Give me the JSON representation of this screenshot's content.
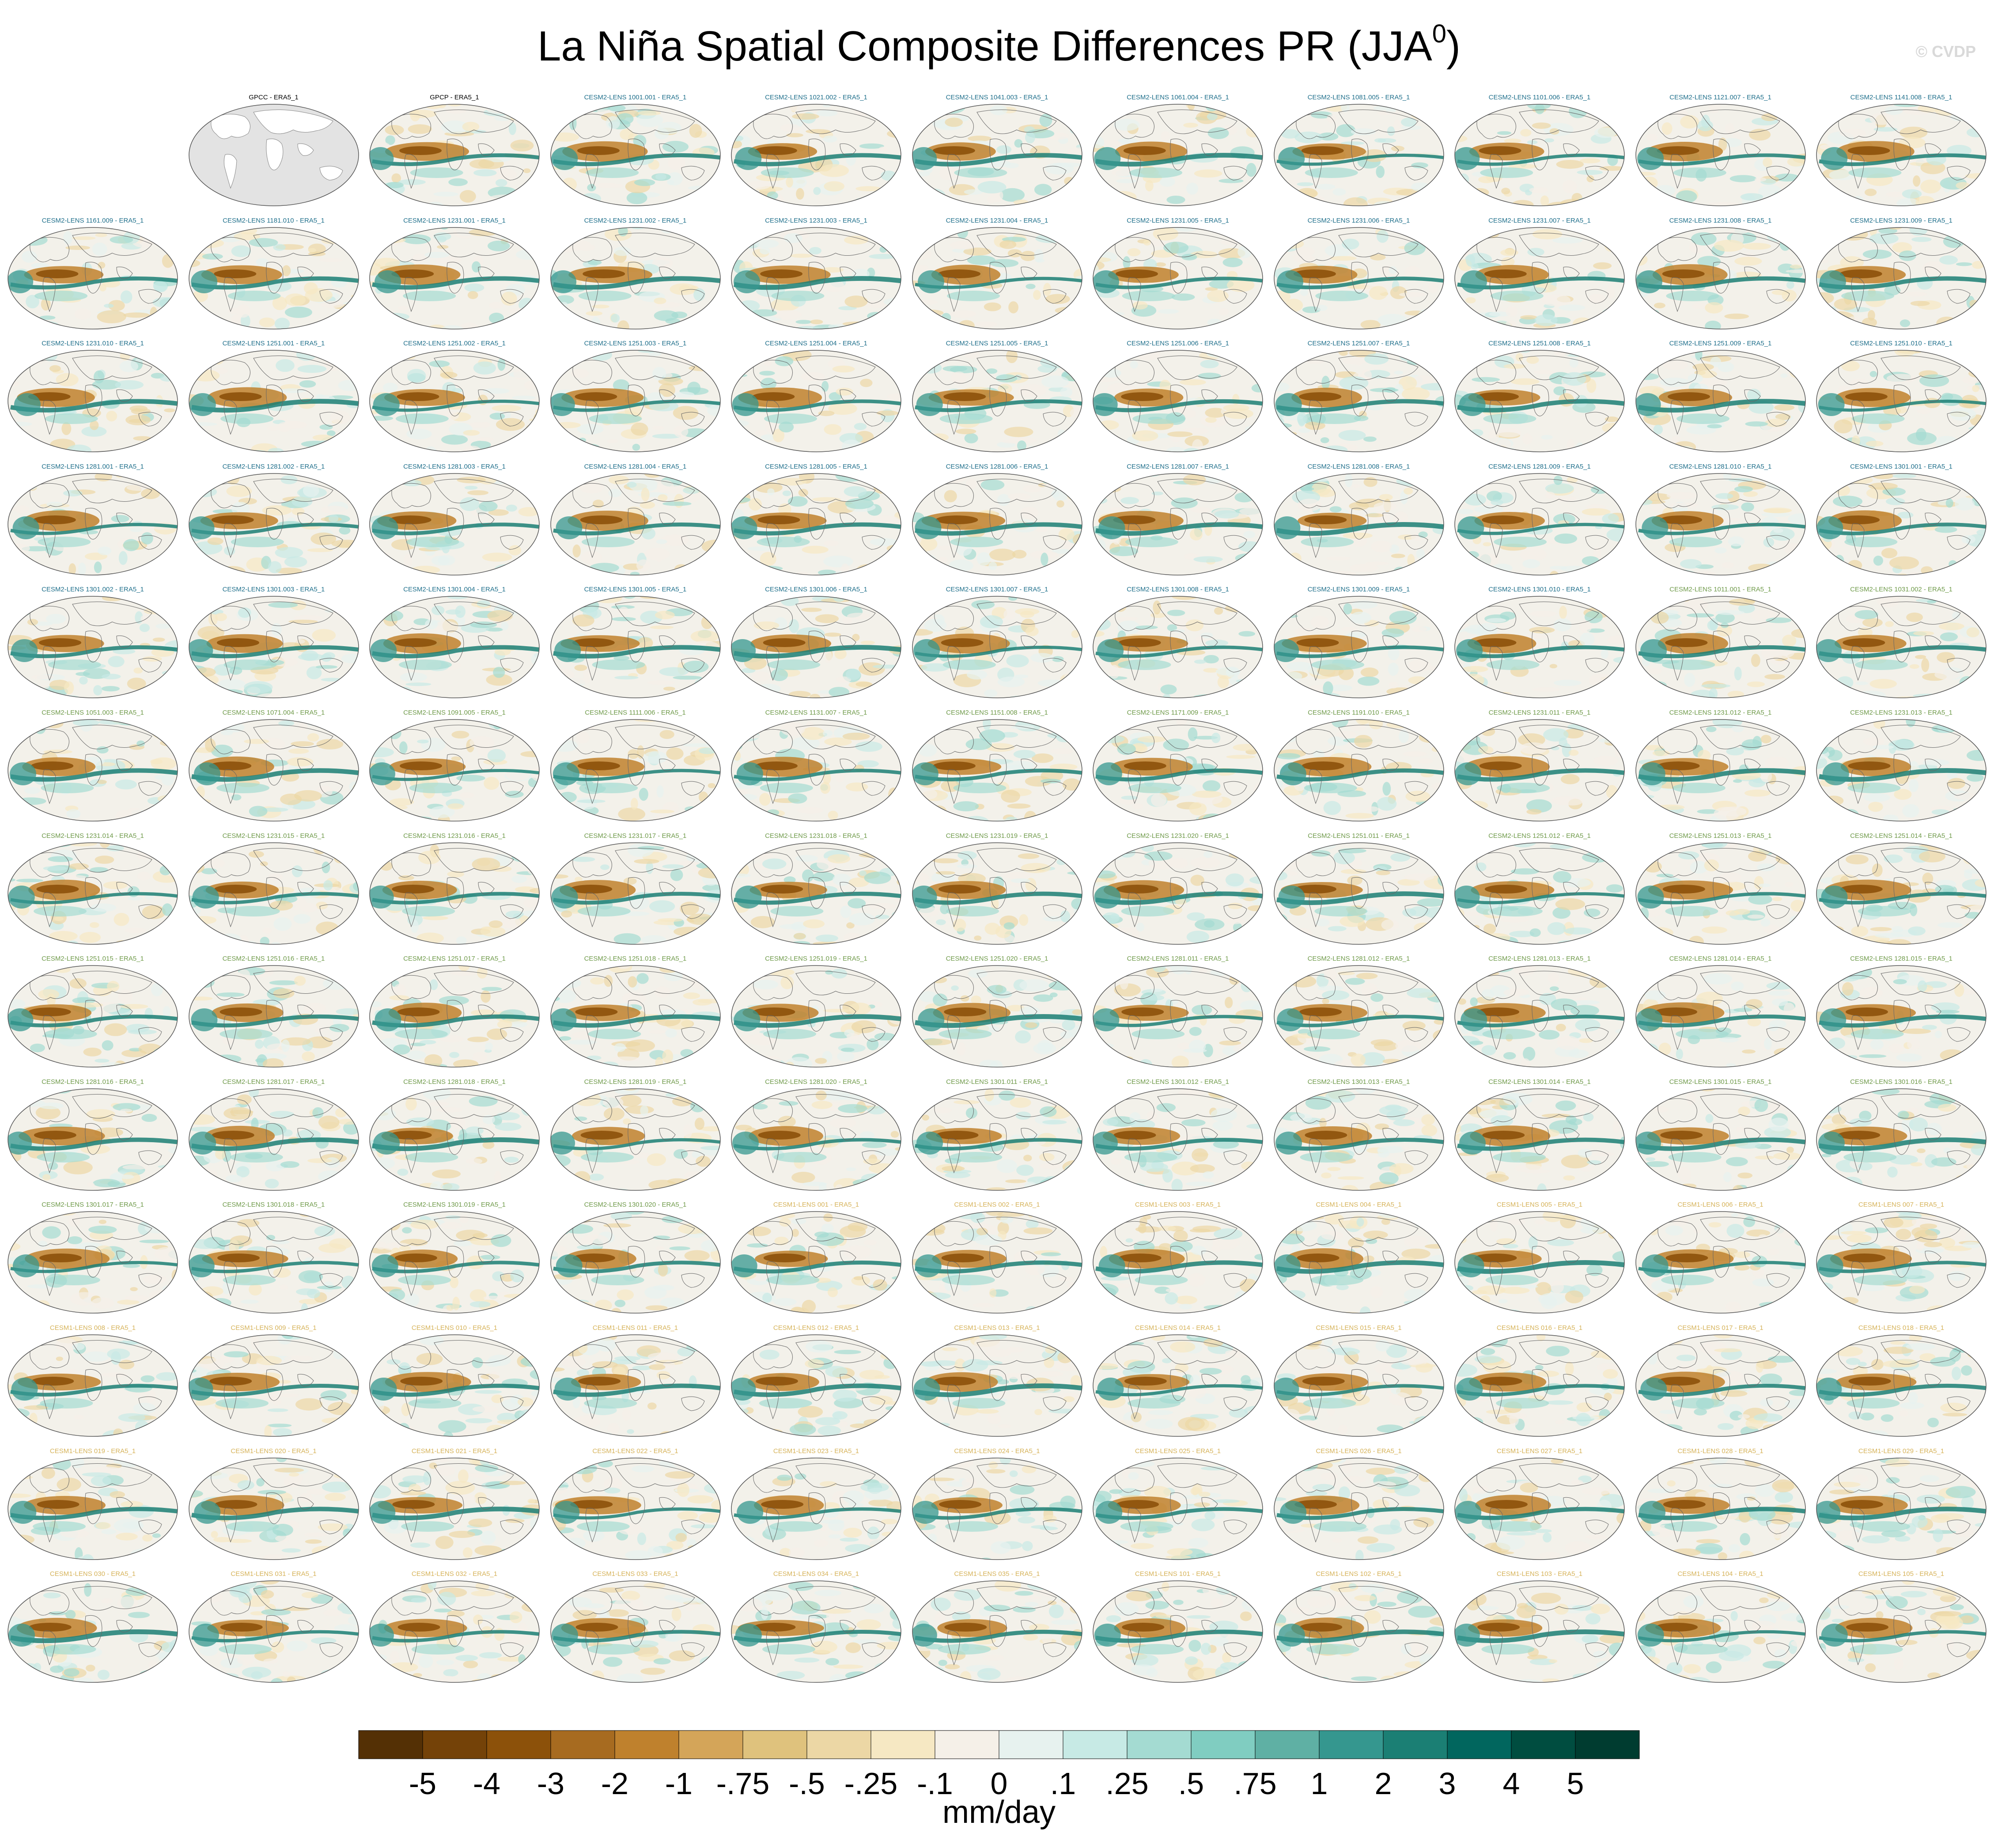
{
  "title": "La Niña Spatial Composite Differences PR (JJA",
  "title_sup": "0",
  "title_end": ")",
  "credit": "© CVDP",
  "chart_data": {
    "type": "heatmap",
    "title": "La Niña Spatial Composite Differences PR (JJA0)",
    "colorbar": {
      "units": "mm/day",
      "levels": [
        "-5",
        "-4",
        "-3",
        "-2",
        "-1",
        "-.75",
        "-.5",
        "-.25",
        "-.1",
        "0",
        ".1",
        ".25",
        ".5",
        ".75",
        "1",
        "2",
        "3",
        "4",
        "5"
      ],
      "colors": [
        "#543005",
        "#744208",
        "#8c510a",
        "#a76b20",
        "#bf812d",
        "#d4a559",
        "#dfc27d",
        "#ecd7a5",
        "#f6e8c3",
        "#f5f0e8",
        "#e7f2ef",
        "#c7eae5",
        "#a4dbd2",
        "#80cdc1",
        "#5fb0a4",
        "#35978f",
        "#1b7f74",
        "#01665e",
        "#004d40",
        "#003c30"
      ]
    },
    "label_colors": {
      "obs": "#000000",
      "CESM2-LENS_a": "#1f6f8b",
      "CESM2-LENS_b": "#6f9a4a",
      "CESM1-LENS": "#d6b35a"
    },
    "panels": [
      {
        "label": "",
        "group": "blank"
      },
      {
        "label": "GPCC - ERA5_1",
        "group": "obs",
        "style": "masked"
      },
      {
        "label": "GPCP - ERA5_1",
        "group": "obs"
      },
      {
        "label": "CESM2-LENS 1001.001 - ERA5_1",
        "group": "CESM2-LENS_a"
      },
      {
        "label": "CESM2-LENS 1021.002 - ERA5_1",
        "group": "CESM2-LENS_a"
      },
      {
        "label": "CESM2-LENS 1041.003 - ERA5_1",
        "group": "CESM2-LENS_a"
      },
      {
        "label": "CESM2-LENS 1061.004 - ERA5_1",
        "group": "CESM2-LENS_a"
      },
      {
        "label": "CESM2-LENS 1081.005 - ERA5_1",
        "group": "CESM2-LENS_a"
      },
      {
        "label": "CESM2-LENS 1101.006 - ERA5_1",
        "group": "CESM2-LENS_a"
      },
      {
        "label": "CESM2-LENS 1121.007 - ERA5_1",
        "group": "CESM2-LENS_a"
      },
      {
        "label": "CESM2-LENS 1141.008 - ERA5_1",
        "group": "CESM2-LENS_a"
      },
      {
        "label": "CESM2-LENS 1161.009 - ERA5_1",
        "group": "CESM2-LENS_a"
      },
      {
        "label": "CESM2-LENS 1181.010 - ERA5_1",
        "group": "CESM2-LENS_a"
      },
      {
        "label": "CESM2-LENS 1231.001 - ERA5_1",
        "group": "CESM2-LENS_a"
      },
      {
        "label": "CESM2-LENS 1231.002 - ERA5_1",
        "group": "CESM2-LENS_a"
      },
      {
        "label": "CESM2-LENS 1231.003 - ERA5_1",
        "group": "CESM2-LENS_a"
      },
      {
        "label": "CESM2-LENS 1231.004 - ERA5_1",
        "group": "CESM2-LENS_a"
      },
      {
        "label": "CESM2-LENS 1231.005 - ERA5_1",
        "group": "CESM2-LENS_a"
      },
      {
        "label": "CESM2-LENS 1231.006 - ERA5_1",
        "group": "CESM2-LENS_a"
      },
      {
        "label": "CESM2-LENS 1231.007 - ERA5_1",
        "group": "CESM2-LENS_a"
      },
      {
        "label": "CESM2-LENS 1231.008 - ERA5_1",
        "group": "CESM2-LENS_a"
      },
      {
        "label": "CESM2-LENS 1231.009 - ERA5_1",
        "group": "CESM2-LENS_a"
      },
      {
        "label": "CESM2-LENS 1231.010 - ERA5_1",
        "group": "CESM2-LENS_a"
      },
      {
        "label": "CESM2-LENS 1251.001 - ERA5_1",
        "group": "CESM2-LENS_a"
      },
      {
        "label": "CESM2-LENS 1251.002 - ERA5_1",
        "group": "CESM2-LENS_a"
      },
      {
        "label": "CESM2-LENS 1251.003 - ERA5_1",
        "group": "CESM2-LENS_a"
      },
      {
        "label": "CESM2-LENS 1251.004 - ERA5_1",
        "group": "CESM2-LENS_a"
      },
      {
        "label": "CESM2-LENS 1251.005 - ERA5_1",
        "group": "CESM2-LENS_a"
      },
      {
        "label": "CESM2-LENS 1251.006 - ERA5_1",
        "group": "CESM2-LENS_a"
      },
      {
        "label": "CESM2-LENS 1251.007 - ERA5_1",
        "group": "CESM2-LENS_a"
      },
      {
        "label": "CESM2-LENS 1251.008 - ERA5_1",
        "group": "CESM2-LENS_a"
      },
      {
        "label": "CESM2-LENS 1251.009 - ERA5_1",
        "group": "CESM2-LENS_a"
      },
      {
        "label": "CESM2-LENS 1251.010 - ERA5_1",
        "group": "CESM2-LENS_a"
      },
      {
        "label": "CESM2-LENS 1281.001 - ERA5_1",
        "group": "CESM2-LENS_a"
      },
      {
        "label": "CESM2-LENS 1281.002 - ERA5_1",
        "group": "CESM2-LENS_a"
      },
      {
        "label": "CESM2-LENS 1281.003 - ERA5_1",
        "group": "CESM2-LENS_a"
      },
      {
        "label": "CESM2-LENS 1281.004 - ERA5_1",
        "group": "CESM2-LENS_a"
      },
      {
        "label": "CESM2-LENS 1281.005 - ERA5_1",
        "group": "CESM2-LENS_a"
      },
      {
        "label": "CESM2-LENS 1281.006 - ERA5_1",
        "group": "CESM2-LENS_a"
      },
      {
        "label": "CESM2-LENS 1281.007 - ERA5_1",
        "group": "CESM2-LENS_a"
      },
      {
        "label": "CESM2-LENS 1281.008 - ERA5_1",
        "group": "CESM2-LENS_a"
      },
      {
        "label": "CESM2-LENS 1281.009 - ERA5_1",
        "group": "CESM2-LENS_a"
      },
      {
        "label": "CESM2-LENS 1281.010 - ERA5_1",
        "group": "CESM2-LENS_a"
      },
      {
        "label": "CESM2-LENS 1301.001 - ERA5_1",
        "group": "CESM2-LENS_a"
      },
      {
        "label": "CESM2-LENS 1301.002 - ERA5_1",
        "group": "CESM2-LENS_a"
      },
      {
        "label": "CESM2-LENS 1301.003 - ERA5_1",
        "group": "CESM2-LENS_a"
      },
      {
        "label": "CESM2-LENS 1301.004 - ERA5_1",
        "group": "CESM2-LENS_a"
      },
      {
        "label": "CESM2-LENS 1301.005 - ERA5_1",
        "group": "CESM2-LENS_a"
      },
      {
        "label": "CESM2-LENS 1301.006 - ERA5_1",
        "group": "CESM2-LENS_a"
      },
      {
        "label": "CESM2-LENS 1301.007 - ERA5_1",
        "group": "CESM2-LENS_a"
      },
      {
        "label": "CESM2-LENS 1301.008 - ERA5_1",
        "group": "CESM2-LENS_a"
      },
      {
        "label": "CESM2-LENS 1301.009 - ERA5_1",
        "group": "CESM2-LENS_a"
      },
      {
        "label": "CESM2-LENS 1301.010 - ERA5_1",
        "group": "CESM2-LENS_a"
      },
      {
        "label": "CESM2-LENS 1011.001 - ERA5_1",
        "group": "CESM2-LENS_b"
      },
      {
        "label": "CESM2-LENS 1031.002 - ERA5_1",
        "group": "CESM2-LENS_b"
      },
      {
        "label": "CESM2-LENS 1051.003 - ERA5_1",
        "group": "CESM2-LENS_b"
      },
      {
        "label": "CESM2-LENS 1071.004 - ERA5_1",
        "group": "CESM2-LENS_b"
      },
      {
        "label": "CESM2-LENS 1091.005 - ERA5_1",
        "group": "CESM2-LENS_b"
      },
      {
        "label": "CESM2-LENS 1111.006 - ERA5_1",
        "group": "CESM2-LENS_b"
      },
      {
        "label": "CESM2-LENS 1131.007 - ERA5_1",
        "group": "CESM2-LENS_b"
      },
      {
        "label": "CESM2-LENS 1151.008 - ERA5_1",
        "group": "CESM2-LENS_b"
      },
      {
        "label": "CESM2-LENS 1171.009 - ERA5_1",
        "group": "CESM2-LENS_b"
      },
      {
        "label": "CESM2-LENS 1191.010 - ERA5_1",
        "group": "CESM2-LENS_b"
      },
      {
        "label": "CESM2-LENS 1231.011 - ERA5_1",
        "group": "CESM2-LENS_b"
      },
      {
        "label": "CESM2-LENS 1231.012 - ERA5_1",
        "group": "CESM2-LENS_b"
      },
      {
        "label": "CESM2-LENS 1231.013 - ERA5_1",
        "group": "CESM2-LENS_b"
      },
      {
        "label": "CESM2-LENS 1231.014 - ERA5_1",
        "group": "CESM2-LENS_b"
      },
      {
        "label": "CESM2-LENS 1231.015 - ERA5_1",
        "group": "CESM2-LENS_b"
      },
      {
        "label": "CESM2-LENS 1231.016 - ERA5_1",
        "group": "CESM2-LENS_b"
      },
      {
        "label": "CESM2-LENS 1231.017 - ERA5_1",
        "group": "CESM2-LENS_b"
      },
      {
        "label": "CESM2-LENS 1231.018 - ERA5_1",
        "group": "CESM2-LENS_b"
      },
      {
        "label": "CESM2-LENS 1231.019 - ERA5_1",
        "group": "CESM2-LENS_b"
      },
      {
        "label": "CESM2-LENS 1231.020 - ERA5_1",
        "group": "CESM2-LENS_b"
      },
      {
        "label": "CESM2-LENS 1251.011 - ERA5_1",
        "group": "CESM2-LENS_b"
      },
      {
        "label": "CESM2-LENS 1251.012 - ERA5_1",
        "group": "CESM2-LENS_b"
      },
      {
        "label": "CESM2-LENS 1251.013 - ERA5_1",
        "group": "CESM2-LENS_b"
      },
      {
        "label": "CESM2-LENS 1251.014 - ERA5_1",
        "group": "CESM2-LENS_b"
      },
      {
        "label": "CESM2-LENS 1251.015 - ERA5_1",
        "group": "CESM2-LENS_b"
      },
      {
        "label": "CESM2-LENS 1251.016 - ERA5_1",
        "group": "CESM2-LENS_b"
      },
      {
        "label": "CESM2-LENS 1251.017 - ERA5_1",
        "group": "CESM2-LENS_b"
      },
      {
        "label": "CESM2-LENS 1251.018 - ERA5_1",
        "group": "CESM2-LENS_b"
      },
      {
        "label": "CESM2-LENS 1251.019 - ERA5_1",
        "group": "CESM2-LENS_b"
      },
      {
        "label": "CESM2-LENS 1251.020 - ERA5_1",
        "group": "CESM2-LENS_b"
      },
      {
        "label": "CESM2-LENS 1281.011 - ERA5_1",
        "group": "CESM2-LENS_b"
      },
      {
        "label": "CESM2-LENS 1281.012 - ERA5_1",
        "group": "CESM2-LENS_b"
      },
      {
        "label": "CESM2-LENS 1281.013 - ERA5_1",
        "group": "CESM2-LENS_b"
      },
      {
        "label": "CESM2-LENS 1281.014 - ERA5_1",
        "group": "CESM2-LENS_b"
      },
      {
        "label": "CESM2-LENS 1281.015 - ERA5_1",
        "group": "CESM2-LENS_b"
      },
      {
        "label": "CESM2-LENS 1281.016 - ERA5_1",
        "group": "CESM2-LENS_b"
      },
      {
        "label": "CESM2-LENS 1281.017 - ERA5_1",
        "group": "CESM2-LENS_b"
      },
      {
        "label": "CESM2-LENS 1281.018 - ERA5_1",
        "group": "CESM2-LENS_b"
      },
      {
        "label": "CESM2-LENS 1281.019 - ERA5_1",
        "group": "CESM2-LENS_b"
      },
      {
        "label": "CESM2-LENS 1281.020 - ERA5_1",
        "group": "CESM2-LENS_b"
      },
      {
        "label": "CESM2-LENS 1301.011 - ERA5_1",
        "group": "CESM2-LENS_b"
      },
      {
        "label": "CESM2-LENS 1301.012 - ERA5_1",
        "group": "CESM2-LENS_b"
      },
      {
        "label": "CESM2-LENS 1301.013 - ERA5_1",
        "group": "CESM2-LENS_b"
      },
      {
        "label": "CESM2-LENS 1301.014 - ERA5_1",
        "group": "CESM2-LENS_b"
      },
      {
        "label": "CESM2-LENS 1301.015 - ERA5_1",
        "group": "CESM2-LENS_b"
      },
      {
        "label": "CESM2-LENS 1301.016 - ERA5_1",
        "group": "CESM2-LENS_b"
      },
      {
        "label": "CESM2-LENS 1301.017 - ERA5_1",
        "group": "CESM2-LENS_b"
      },
      {
        "label": "CESM2-LENS 1301.018 - ERA5_1",
        "group": "CESM2-LENS_b"
      },
      {
        "label": "CESM2-LENS 1301.019 - ERA5_1",
        "group": "CESM2-LENS_b"
      },
      {
        "label": "CESM2-LENS 1301.020 - ERA5_1",
        "group": "CESM2-LENS_b"
      },
      {
        "label": "CESM1-LENS 001 - ERA5_1",
        "group": "CESM1-LENS"
      },
      {
        "label": "CESM1-LENS 002 - ERA5_1",
        "group": "CESM1-LENS"
      },
      {
        "label": "CESM1-LENS 003 - ERA5_1",
        "group": "CESM1-LENS"
      },
      {
        "label": "CESM1-LENS 004 - ERA5_1",
        "group": "CESM1-LENS"
      },
      {
        "label": "CESM1-LENS 005 - ERA5_1",
        "group": "CESM1-LENS"
      },
      {
        "label": "CESM1-LENS 006 - ERA5_1",
        "group": "CESM1-LENS"
      },
      {
        "label": "CESM1-LENS 007 - ERA5_1",
        "group": "CESM1-LENS"
      },
      {
        "label": "CESM1-LENS 008 - ERA5_1",
        "group": "CESM1-LENS"
      },
      {
        "label": "CESM1-LENS 009 - ERA5_1",
        "group": "CESM1-LENS"
      },
      {
        "label": "CESM1-LENS 010 - ERA5_1",
        "group": "CESM1-LENS"
      },
      {
        "label": "CESM1-LENS 011 - ERA5_1",
        "group": "CESM1-LENS"
      },
      {
        "label": "CESM1-LENS 012 - ERA5_1",
        "group": "CESM1-LENS"
      },
      {
        "label": "CESM1-LENS 013 - ERA5_1",
        "group": "CESM1-LENS"
      },
      {
        "label": "CESM1-LENS 014 - ERA5_1",
        "group": "CESM1-LENS"
      },
      {
        "label": "CESM1-LENS 015 - ERA5_1",
        "group": "CESM1-LENS"
      },
      {
        "label": "CESM1-LENS 016 - ERA5_1",
        "group": "CESM1-LENS"
      },
      {
        "label": "CESM1-LENS 017 - ERA5_1",
        "group": "CESM1-LENS"
      },
      {
        "label": "CESM1-LENS 018 - ERA5_1",
        "group": "CESM1-LENS"
      },
      {
        "label": "CESM1-LENS 019 - ERA5_1",
        "group": "CESM1-LENS"
      },
      {
        "label": "CESM1-LENS 020 - ERA5_1",
        "group": "CESM1-LENS"
      },
      {
        "label": "CESM1-LENS 021 - ERA5_1",
        "group": "CESM1-LENS"
      },
      {
        "label": "CESM1-LENS 022 - ERA5_1",
        "group": "CESM1-LENS"
      },
      {
        "label": "CESM1-LENS 023 - ERA5_1",
        "group": "CESM1-LENS"
      },
      {
        "label": "CESM1-LENS 024 - ERA5_1",
        "group": "CESM1-LENS"
      },
      {
        "label": "CESM1-LENS 025 - ERA5_1",
        "group": "CESM1-LENS"
      },
      {
        "label": "CESM1-LENS 026 - ERA5_1",
        "group": "CESM1-LENS"
      },
      {
        "label": "CESM1-LENS 027 - ERA5_1",
        "group": "CESM1-LENS"
      },
      {
        "label": "CESM1-LENS 028 - ERA5_1",
        "group": "CESM1-LENS"
      },
      {
        "label": "CESM1-LENS 029 - ERA5_1",
        "group": "CESM1-LENS"
      },
      {
        "label": "CESM1-LENS 030 - ERA5_1",
        "group": "CESM1-LENS"
      },
      {
        "label": "CESM1-LENS 031 - ERA5_1",
        "group": "CESM1-LENS"
      },
      {
        "label": "CESM1-LENS 032 - ERA5_1",
        "group": "CESM1-LENS"
      },
      {
        "label": "CESM1-LENS 033 - ERA5_1",
        "group": "CESM1-LENS"
      },
      {
        "label": "CESM1-LENS 034 - ERA5_1",
        "group": "CESM1-LENS"
      },
      {
        "label": "CESM1-LENS 035 - ERA5_1",
        "group": "CESM1-LENS"
      },
      {
        "label": "CESM1-LENS 101 - ERA5_1",
        "group": "CESM1-LENS"
      },
      {
        "label": "CESM1-LENS 102 - ERA5_1",
        "group": "CESM1-LENS"
      },
      {
        "label": "CESM1-LENS 103 - ERA5_1",
        "group": "CESM1-LENS"
      },
      {
        "label": "CESM1-LENS 104 - ERA5_1",
        "group": "CESM1-LENS"
      },
      {
        "label": "CESM1-LENS 105 - ERA5_1",
        "group": "CESM1-LENS"
      }
    ]
  }
}
